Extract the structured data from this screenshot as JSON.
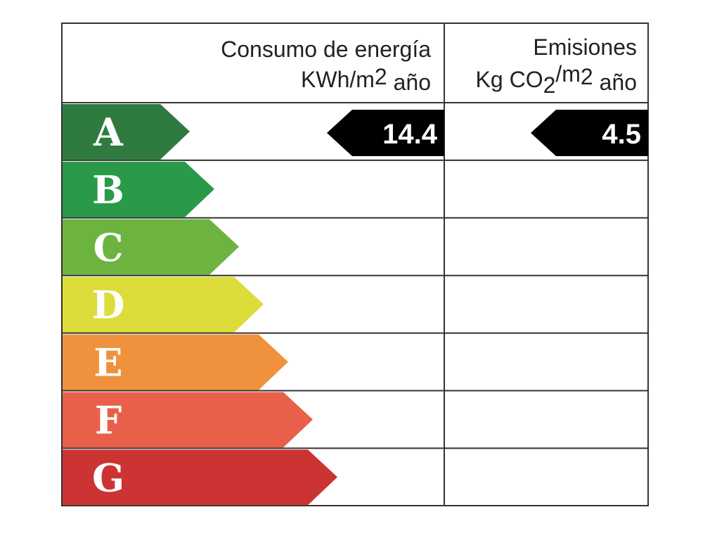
{
  "header": {
    "energy": {
      "title": "Consumo de energía",
      "unit": [
        "KWh/m",
        "2",
        " año"
      ]
    },
    "emissions": {
      "title": "Emisiones",
      "unit": [
        "Kg CO",
        "2",
        "/m",
        "2",
        " año"
      ]
    }
  },
  "ratings": [
    "A",
    "B",
    "C",
    "D",
    "E",
    "F",
    "G"
  ],
  "energy": {
    "rating": "A",
    "value": 14.4
  },
  "emissions": {
    "rating": "A",
    "value": 4.5
  }
}
